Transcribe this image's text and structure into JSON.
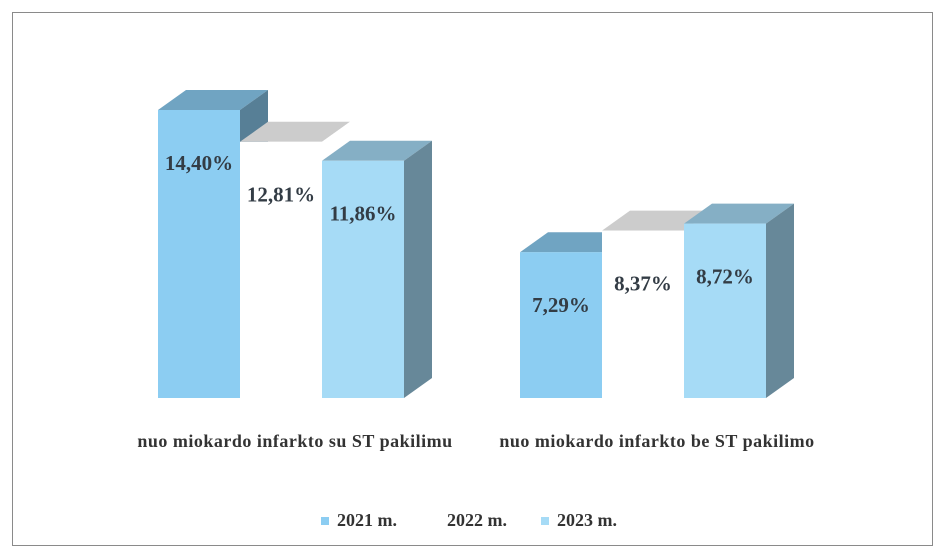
{
  "chart_data": {
    "type": "bar3d",
    "categories": [
      "nuo miokardo infarkto su ST pakilimu",
      "nuo miokardo infarkto be ST pakilimo"
    ],
    "series": [
      {
        "name": "2021 m.",
        "color": "#8ccdf2",
        "values": [
          14.4,
          7.29
        ],
        "value_labels": [
          "14,40%",
          "7,29%"
        ]
      },
      {
        "name": "2022 m.",
        "color": "#ffffff",
        "values": [
          12.81,
          8.37
        ],
        "value_labels": [
          "12,81%",
          "8,37%"
        ]
      },
      {
        "name": "2023 m.",
        "color": "#a6dbf6",
        "values": [
          11.86,
          8.72
        ],
        "value_labels": [
          "11,86%",
          "8,72%"
        ]
      }
    ],
    "legend": "bottom"
  }
}
